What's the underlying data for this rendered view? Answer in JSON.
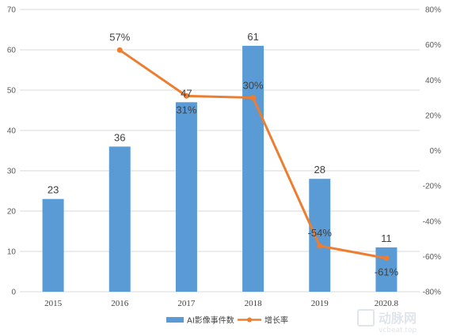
{
  "chart_data": {
    "type": "bar",
    "categories": [
      "2015",
      "2016",
      "2017",
      "2018",
      "2019",
      "2020.8"
    ],
    "series": [
      {
        "name": "AI影像事件数",
        "type": "bar",
        "axis": "left",
        "color": "#5b9bd5",
        "values": [
          23,
          36,
          47,
          61,
          28,
          11
        ],
        "labels": [
          "23",
          "36",
          "47",
          "61",
          "28",
          "11"
        ]
      },
      {
        "name": "增长率",
        "type": "line",
        "axis": "right",
        "color": "#ed7d31",
        "values": [
          null,
          57,
          31,
          30,
          -54,
          -61
        ],
        "labels": [
          null,
          "57%",
          "31%",
          "30%",
          "-54%",
          "-61%"
        ]
      }
    ],
    "left_axis": {
      "ylim": [
        0,
        70
      ],
      "ticks": [
        "0",
        "10",
        "20",
        "30",
        "40",
        "50",
        "60",
        "70"
      ]
    },
    "right_axis": {
      "ylim": [
        -80,
        80
      ],
      "ticks": [
        "-80%",
        "-60%",
        "-40%",
        "-20%",
        "0%",
        "20%",
        "40%",
        "60%",
        "80%"
      ]
    },
    "grid": true,
    "legend": "bottom"
  },
  "watermark": {
    "text": "动脉网",
    "sub": "vcbeat.top"
  }
}
